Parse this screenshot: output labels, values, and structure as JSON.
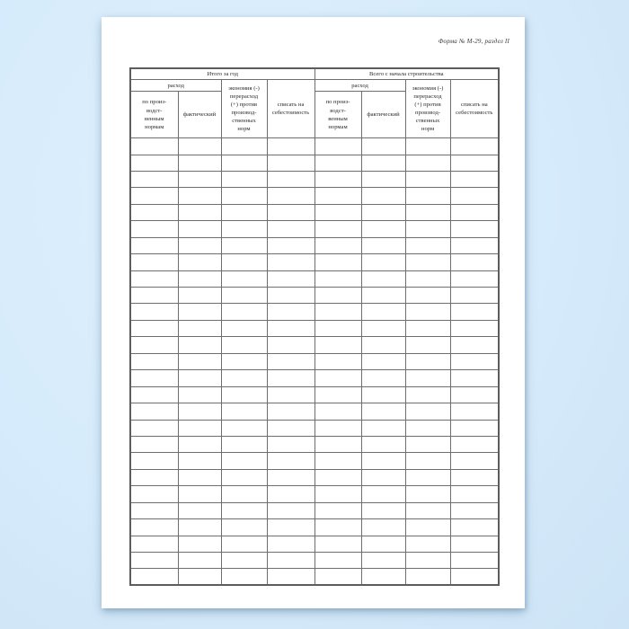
{
  "page": {
    "form_label": "Форма № М-29, раздел II"
  },
  "table": {
    "column_count": 8,
    "body_row_count": 27,
    "sections": [
      {
        "title": "Итого за год",
        "expense_header": "расход",
        "expense_by_norms": "по произ-\nводст-\nвенным\nнормам",
        "expense_actual": "фактический",
        "economy_header": "экономия (-)\nперерасход\n(+) против\nпроизвод-\nственных\nнорм",
        "writeoff_header": "списать на\nсебестоимость"
      },
      {
        "title": "Всего с начала строительства",
        "expense_header": "расход",
        "expense_by_norms": "по произ-\nводст-\nвенным\nнормам",
        "expense_actual": "фактический",
        "economy_header": "экономия (-)\nперерасход\n(+) против\nпроизвод-\nственных\nнорм",
        "writeoff_header": "списать на\nсебестоимость"
      }
    ]
  },
  "colors": {
    "background": "#d7ebfb",
    "paper": "#ffffff",
    "table_border": "#6e6e6e",
    "text": "#2b2b2b"
  }
}
